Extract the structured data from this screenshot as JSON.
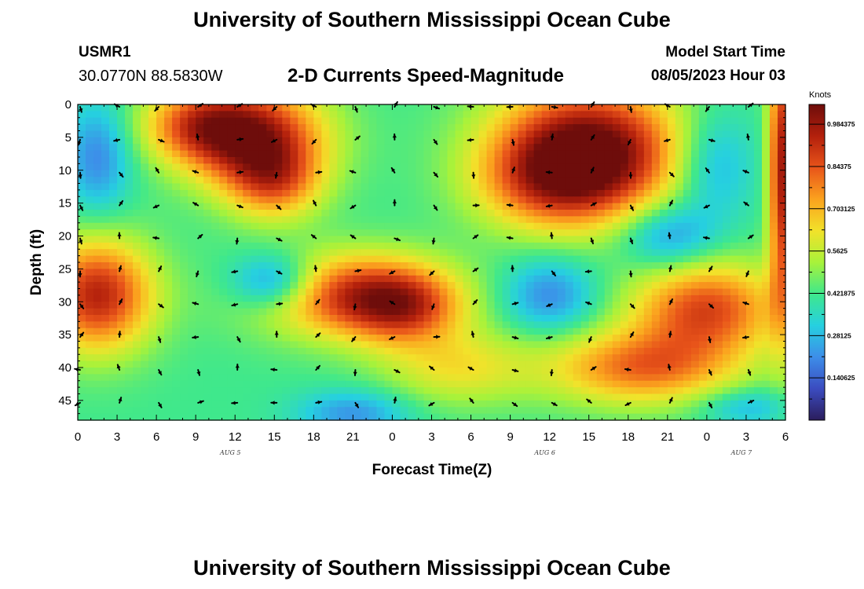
{
  "header": {
    "title": "University of Southern Mississippi Ocean Cube",
    "station": "USMR1",
    "coords": "30.0770N  88.5830W",
    "subtitle": "2-D Currents Speed-Magnitude",
    "model_start_label": "Model Start Time",
    "model_start_value": "08/05/2023 Hour 03"
  },
  "footer": {
    "title": "University of Southern Mississippi Ocean Cube"
  },
  "chart_data": {
    "type": "heatmap",
    "title": "2-D Currents Speed-Magnitude",
    "xlabel": "Forecast Time(Z)",
    "ylabel": "Depth (ft)",
    "x_ticks": [
      "0",
      "3",
      "6",
      "9",
      "12",
      "15",
      "18",
      "21",
      "0",
      "3",
      "6",
      "9",
      "12",
      "15",
      "18",
      "21",
      "0",
      "3",
      "6"
    ],
    "x_range_hours": [
      0,
      54
    ],
    "day_labels": [
      {
        "label": "AUG 5",
        "at_hour": 12
      },
      {
        "label": "AUG 6",
        "at_hour": 36
      },
      {
        "label": "AUG 7",
        "at_hour": 51
      }
    ],
    "y_ticks": [
      "0",
      "5",
      "10",
      "15",
      "20",
      "25",
      "30",
      "35",
      "40",
      "45"
    ],
    "y_range_ft": [
      0,
      48
    ],
    "y_inverted": true,
    "colorbar": {
      "unit": "Knots",
      "ticks": [
        "0.140625",
        "0.28125",
        "0.421875",
        "0.5625",
        "0.703125",
        "0.84375",
        "0.984375"
      ],
      "range": [
        0,
        1.05
      ],
      "colors": [
        "#2b1d5c",
        "#3b4cc0",
        "#3d8ee9",
        "#26d0e0",
        "#3fe88c",
        "#a8f23a",
        "#f2e22a",
        "#fba21e",
        "#e8541a",
        "#b3200c",
        "#6e0d0b"
      ]
    },
    "speed_features": [
      {
        "hour": 13.5,
        "depth": 5,
        "speed": 0.55,
        "hour_sigma": 3.8,
        "depth_sigma": 5.5
      },
      {
        "hour": 9,
        "depth": 3,
        "speed": 0.32,
        "hour_sigma": 3,
        "depth_sigma": 4
      },
      {
        "hour": 15,
        "depth": 12,
        "speed": 0.3,
        "hour_sigma": 2.5,
        "depth_sigma": 4
      },
      {
        "hour": 39,
        "depth": 7,
        "speed": 0.66,
        "hour_sigma": 5,
        "depth_sigma": 7
      },
      {
        "hour": 36,
        "depth": 12,
        "speed": 0.25,
        "hour_sigma": 4,
        "depth_sigma": 5
      },
      {
        "hour": 1.5,
        "depth": 29,
        "speed": 0.52,
        "hour_sigma": 3,
        "depth_sigma": 6
      },
      {
        "hour": 21,
        "depth": 29,
        "speed": 0.46,
        "hour_sigma": 5,
        "depth_sigma": 4.5
      },
      {
        "hour": 25,
        "depth": 31,
        "speed": 0.3,
        "hour_sigma": 3,
        "depth_sigma": 4
      },
      {
        "hour": 48,
        "depth": 31,
        "speed": 0.44,
        "hour_sigma": 4,
        "depth_sigma": 5
      },
      {
        "hour": 43,
        "depth": 40,
        "speed": 0.38,
        "hour_sigma": 5,
        "depth_sigma": 4
      },
      {
        "hour": 29,
        "depth": 40,
        "speed": 0.2,
        "hour_sigma": 4,
        "depth_sigma": 4
      },
      {
        "hour": 53.7,
        "depth": 10,
        "speed": 0.55,
        "hour_sigma": 0.7,
        "depth_sigma": 15
      },
      {
        "hour": 1.5,
        "depth": 8,
        "speed": -0.22,
        "hour_sigma": 1.8,
        "depth_sigma": 6
      },
      {
        "hour": 15,
        "depth": 27,
        "speed": -0.3,
        "hour_sigma": 2.3,
        "depth_sigma": 3
      },
      {
        "hour": 36,
        "depth": 29,
        "speed": -0.22,
        "hour_sigma": 2.5,
        "depth_sigma": 4
      },
      {
        "hour": 48.5,
        "depth": 9,
        "speed": -0.2,
        "hour_sigma": 2.2,
        "depth_sigma": 6
      },
      {
        "hour": 45,
        "depth": 20,
        "speed": -0.22,
        "hour_sigma": 2.5,
        "depth_sigma": 3.5
      },
      {
        "hour": 21,
        "depth": 47,
        "speed": -0.2,
        "hour_sigma": 3,
        "depth_sigma": 2.5
      },
      {
        "hour": 51,
        "depth": 46,
        "speed": -0.15,
        "hour_sigma": 2.5,
        "depth_sigma": 2
      }
    ],
    "speed_base": 0.42,
    "arrow_hours": [
      0,
      3,
      6,
      9,
      12,
      15,
      18,
      21,
      24,
      27,
      30,
      33,
      36,
      39,
      42,
      45,
      48,
      51
    ],
    "arrow_depths": [
      0,
      5,
      10,
      15,
      20,
      25,
      30,
      35,
      40,
      45
    ]
  }
}
